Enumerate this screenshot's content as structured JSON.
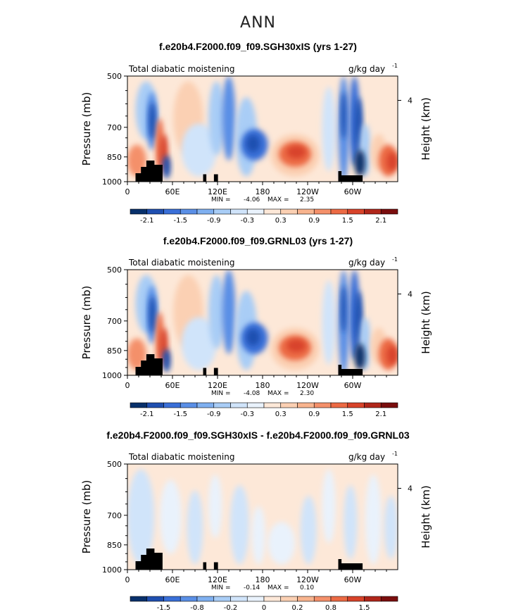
{
  "page_title": "ANN",
  "chart_data": [
    {
      "type": "heatmap",
      "title": "f.e20b4.F2000.f09_f09.SGH30xIS (yrs 1-27)",
      "left_string": "Total diabatic moistening",
      "units": "g/kg day",
      "units_exponent": "-1",
      "ylabel": "Pressure (mb)",
      "ylabel_right": "Height (km)",
      "y_ticks": [
        "500",
        "700",
        "850",
        "1000"
      ],
      "y_right_ticks": [
        "4"
      ],
      "x_ticks": [
        "0",
        "60E",
        "120E",
        "180",
        "120W",
        "60W"
      ],
      "stats": {
        "min_label": "MIN =",
        "min": "-4.06",
        "max_label": "MAX =",
        "max": "2.35"
      },
      "colorbar_labels": [
        "-2.1",
        "-1.5",
        "-0.9",
        "-0.3",
        "0.3",
        "0.9",
        "1.5",
        "2.1"
      ],
      "colorbar_colors": [
        "#08306b",
        "#1f4fb0",
        "#3a6fd8",
        "#5a8fe6",
        "#7fb0f0",
        "#a9cdf6",
        "#d0e4fa",
        "#e9f2fc",
        "#fde8d8",
        "#fbd0b3",
        "#f8b48e",
        "#f4906a",
        "#ec6a44",
        "#d8432a",
        "#b0261a",
        "#7a0d0d"
      ]
    },
    {
      "type": "heatmap",
      "title": "f.e20b4.F2000.f09_f09.GRNL03 (yrs 1-27)",
      "left_string": "Total diabatic moistening",
      "units": "g/kg day",
      "units_exponent": "-1",
      "ylabel": "Pressure (mb)",
      "ylabel_right": "Height (km)",
      "y_ticks": [
        "500",
        "700",
        "850",
        "1000"
      ],
      "y_right_ticks": [
        "4"
      ],
      "x_ticks": [
        "0",
        "60E",
        "120E",
        "180",
        "120W",
        "60W"
      ],
      "stats": {
        "min_label": "MIN =",
        "min": "-4.08",
        "max_label": "MAX =",
        "max": "2.30"
      },
      "colorbar_labels": [
        "-2.1",
        "-1.5",
        "-0.9",
        "-0.3",
        "0.3",
        "0.9",
        "1.5",
        "2.1"
      ],
      "colorbar_colors": [
        "#08306b",
        "#1f4fb0",
        "#3a6fd8",
        "#5a8fe6",
        "#7fb0f0",
        "#a9cdf6",
        "#d0e4fa",
        "#e9f2fc",
        "#fde8d8",
        "#fbd0b3",
        "#f8b48e",
        "#f4906a",
        "#ec6a44",
        "#d8432a",
        "#b0261a",
        "#7a0d0d"
      ]
    },
    {
      "type": "heatmap",
      "title": "f.e20b4.F2000.f09_f09.SGH30xIS - f.e20b4.F2000.f09_f09.GRNL03",
      "left_string": "Total diabatic moistening",
      "units": "g/kg day",
      "units_exponent": "-1",
      "ylabel": "Pressure (mb)",
      "ylabel_right": "Height (km)",
      "y_ticks": [
        "500",
        "700",
        "850",
        "1000"
      ],
      "y_right_ticks": [
        "4"
      ],
      "x_ticks": [
        "0",
        "60E",
        "120E",
        "180",
        "120W",
        "60W"
      ],
      "stats": {
        "min_label": "MIN =",
        "min": "-0.14",
        "max_label": "MAX =",
        "max": "0.10"
      },
      "colorbar_labels": [
        "-1.5",
        "-0.8",
        "-0.2",
        "0",
        "0.2",
        "0.8",
        "1.5"
      ],
      "colorbar_colors": [
        "#08306b",
        "#1f4fb0",
        "#3a6fd8",
        "#5a8fe6",
        "#7fb0f0",
        "#a9cdf6",
        "#d0e4fa",
        "#e9f2fc",
        "#fde8d8",
        "#fbd0b3",
        "#f8b48e",
        "#f4906a",
        "#ec6a44",
        "#d8432a",
        "#b0261a",
        "#7a0d0d"
      ]
    }
  ]
}
